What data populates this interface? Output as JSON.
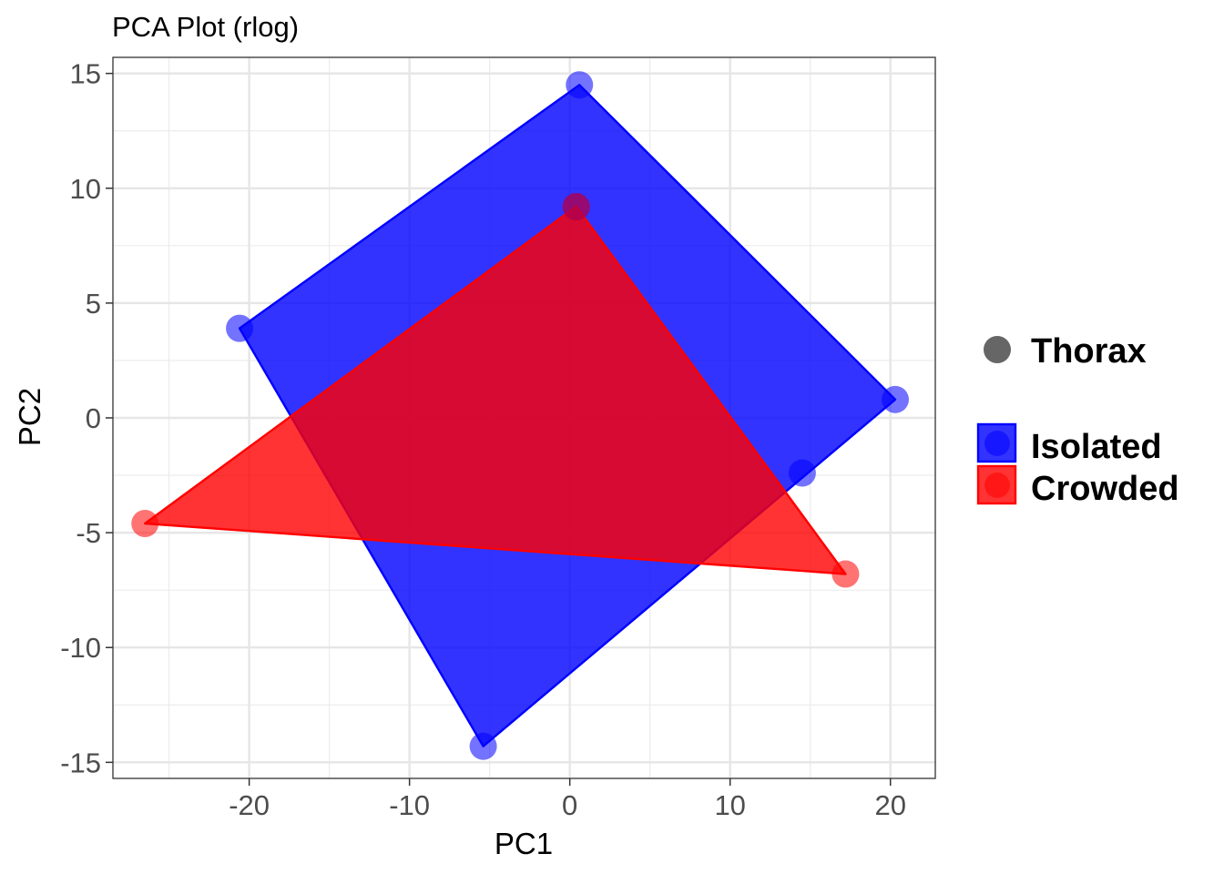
{
  "chart_data": {
    "type": "scatter",
    "title": "PCA Plot (rlog)",
    "xlabel": "PC1",
    "ylabel": "PC2",
    "xlim": [
      -28.5,
      22.8
    ],
    "ylim": [
      -15.7,
      15.7
    ],
    "x_ticks": [
      -20,
      -10,
      0,
      10,
      20
    ],
    "y_ticks": [
      -15,
      -10,
      -5,
      0,
      5,
      10,
      15
    ],
    "grid": true,
    "legend_position": "right",
    "shape_legend": {
      "label": "Thorax",
      "color": "#666666"
    },
    "series": [
      {
        "name": "Isolated",
        "color": "#0000ff",
        "points": [
          {
            "x": 0.6,
            "y": 14.5
          },
          {
            "x": 0.4,
            "y": 9.2
          },
          {
            "x": -20.6,
            "y": 3.9
          },
          {
            "x": 20.3,
            "y": 0.8
          },
          {
            "x": 14.5,
            "y": -2.4
          },
          {
            "x": -5.4,
            "y": -14.3
          }
        ],
        "hull": [
          {
            "x": 0.6,
            "y": 14.5
          },
          {
            "x": 20.3,
            "y": 0.8
          },
          {
            "x": -5.4,
            "y": -14.3
          },
          {
            "x": -20.6,
            "y": 3.9
          }
        ]
      },
      {
        "name": "Crowded",
        "color": "#ff0000",
        "points": [
          {
            "x": 0.4,
            "y": 9.2
          },
          {
            "x": -26.5,
            "y": -4.6
          },
          {
            "x": 17.2,
            "y": -6.8
          }
        ],
        "hull": [
          {
            "x": 0.4,
            "y": 9.2
          },
          {
            "x": 17.2,
            "y": -6.8
          },
          {
            "x": -26.5,
            "y": -4.6
          }
        ]
      }
    ]
  }
}
